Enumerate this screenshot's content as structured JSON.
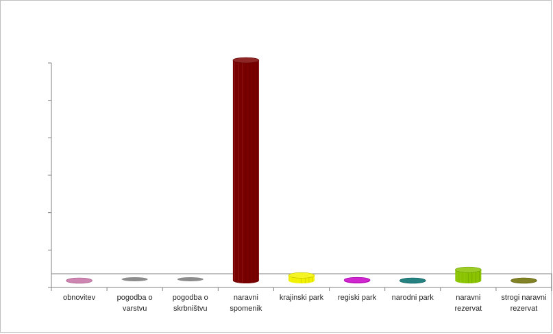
{
  "chart_data": {
    "type": "bar",
    "style": "3d-cylinder",
    "title": "",
    "xlabel": "",
    "ylabel": "",
    "categories": [
      [
        "obnovitev"
      ],
      [
        "pogodba o",
        "varstvu"
      ],
      [
        "pogodba o",
        "skrbništvu"
      ],
      [
        "naravni",
        "spomenik"
      ],
      [
        "krajinski park"
      ],
      [
        "regiski park"
      ],
      [
        "narodni park"
      ],
      [
        "naravni",
        "rezervat"
      ],
      [
        "strogi naravni",
        "rezervat"
      ]
    ],
    "values": [
      1,
      0,
      0,
      1210,
      50,
      25,
      15,
      80,
      15
    ],
    "colors": [
      "#c76fa3",
      "#7f7f7f",
      "#7f7f7f",
      "#7a0000",
      "#f2f200",
      "#c800c8",
      "#006b6b",
      "#8ac400",
      "#6b6b00"
    ],
    "ylim": [
      0,
      1200
    ],
    "y_tick_labels_visible": false,
    "grid": false,
    "legend": "none"
  }
}
